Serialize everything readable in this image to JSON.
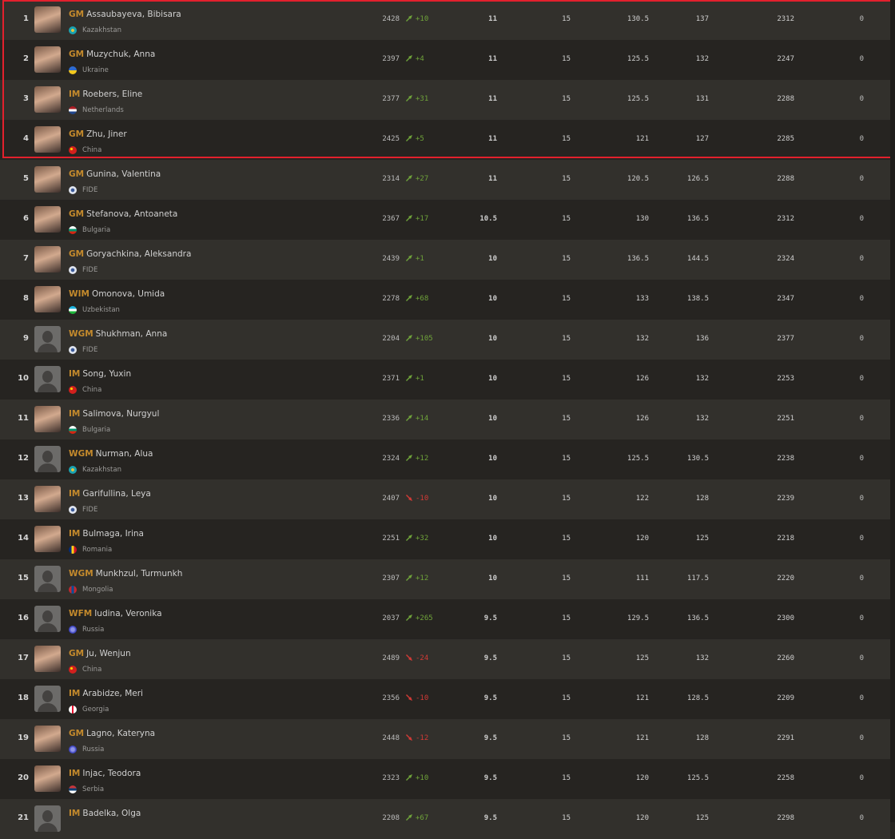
{
  "accent_colors": {
    "title": "#c48a2c",
    "up": "#6fa33a",
    "down": "#d23a36",
    "highlight": "#e3202d"
  },
  "highlight_rows": [
    1,
    2,
    3,
    4
  ],
  "players": [
    {
      "rank": "1",
      "title": "GM",
      "name": "Assaubayeva, Bibisara",
      "country": "Kazakhstan",
      "photo": true,
      "rating": "2428",
      "change": "+10",
      "dir": "up",
      "score": "11",
      "games": "15",
      "c5": "130.5",
      "c6": "137",
      "c7": "2312",
      "c8": "0"
    },
    {
      "rank": "2",
      "title": "GM",
      "name": "Muzychuk, Anna",
      "country": "Ukraine",
      "photo": true,
      "rating": "2397",
      "change": "+4",
      "dir": "up",
      "score": "11",
      "games": "15",
      "c5": "125.5",
      "c6": "132",
      "c7": "2247",
      "c8": "0"
    },
    {
      "rank": "3",
      "title": "IM",
      "name": "Roebers, Eline",
      "country": "Netherlands",
      "photo": true,
      "rating": "2377",
      "change": "+31",
      "dir": "up",
      "score": "11",
      "games": "15",
      "c5": "125.5",
      "c6": "131",
      "c7": "2288",
      "c8": "0"
    },
    {
      "rank": "4",
      "title": "GM",
      "name": "Zhu, Jiner",
      "country": "China",
      "photo": true,
      "rating": "2425",
      "change": "+5",
      "dir": "up",
      "score": "11",
      "games": "15",
      "c5": "121",
      "c6": "127",
      "c7": "2285",
      "c8": "0"
    },
    {
      "rank": "5",
      "title": "GM",
      "name": "Gunina, Valentina",
      "country": "FIDE",
      "photo": true,
      "rating": "2314",
      "change": "+27",
      "dir": "up",
      "score": "11",
      "games": "15",
      "c5": "120.5",
      "c6": "126.5",
      "c7": "2288",
      "c8": "0"
    },
    {
      "rank": "6",
      "title": "GM",
      "name": "Stefanova, Antoaneta",
      "country": "Bulgaria",
      "photo": true,
      "rating": "2367",
      "change": "+17",
      "dir": "up",
      "score": "10.5",
      "games": "15",
      "c5": "130",
      "c6": "136.5",
      "c7": "2312",
      "c8": "0"
    },
    {
      "rank": "7",
      "title": "GM",
      "name": "Goryachkina, Aleksandra",
      "country": "FIDE",
      "photo": true,
      "rating": "2439",
      "change": "+1",
      "dir": "up",
      "score": "10",
      "games": "15",
      "c5": "136.5",
      "c6": "144.5",
      "c7": "2324",
      "c8": "0"
    },
    {
      "rank": "8",
      "title": "WIM",
      "name": "Omonova, Umida",
      "country": "Uzbekistan",
      "photo": true,
      "rating": "2278",
      "change": "+68",
      "dir": "up",
      "score": "10",
      "games": "15",
      "c5": "133",
      "c6": "138.5",
      "c7": "2347",
      "c8": "0"
    },
    {
      "rank": "9",
      "title": "WGM",
      "name": "Shukhman, Anna",
      "country": "FIDE",
      "photo": false,
      "rating": "2204",
      "change": "+105",
      "dir": "up",
      "score": "10",
      "games": "15",
      "c5": "132",
      "c6": "136",
      "c7": "2377",
      "c8": "0"
    },
    {
      "rank": "10",
      "title": "IM",
      "name": "Song, Yuxin",
      "country": "China",
      "photo": false,
      "rating": "2371",
      "change": "+1",
      "dir": "up",
      "score": "10",
      "games": "15",
      "c5": "126",
      "c6": "132",
      "c7": "2253",
      "c8": "0"
    },
    {
      "rank": "11",
      "title": "IM",
      "name": "Salimova, Nurgyul",
      "country": "Bulgaria",
      "photo": true,
      "rating": "2336",
      "change": "+14",
      "dir": "up",
      "score": "10",
      "games": "15",
      "c5": "126",
      "c6": "132",
      "c7": "2251",
      "c8": "0"
    },
    {
      "rank": "12",
      "title": "WGM",
      "name": "Nurman, Alua",
      "country": "Kazakhstan",
      "photo": false,
      "rating": "2324",
      "change": "+12",
      "dir": "up",
      "score": "10",
      "games": "15",
      "c5": "125.5",
      "c6": "130.5",
      "c7": "2238",
      "c8": "0"
    },
    {
      "rank": "13",
      "title": "IM",
      "name": "Garifullina, Leya",
      "country": "FIDE",
      "photo": true,
      "rating": "2407",
      "change": "-10",
      "dir": "down",
      "score": "10",
      "games": "15",
      "c5": "122",
      "c6": "128",
      "c7": "2239",
      "c8": "0"
    },
    {
      "rank": "14",
      "title": "IM",
      "name": "Bulmaga, Irina",
      "country": "Romania",
      "photo": true,
      "rating": "2251",
      "change": "+32",
      "dir": "up",
      "score": "10",
      "games": "15",
      "c5": "120",
      "c6": "125",
      "c7": "2218",
      "c8": "0"
    },
    {
      "rank": "15",
      "title": "WGM",
      "name": "Munkhzul, Turmunkh",
      "country": "Mongolia",
      "photo": false,
      "rating": "2307",
      "change": "+12",
      "dir": "up",
      "score": "10",
      "games": "15",
      "c5": "111",
      "c6": "117.5",
      "c7": "2220",
      "c8": "0"
    },
    {
      "rank": "16",
      "title": "WFM",
      "name": "Iudina, Veronika",
      "country": "Russia",
      "photo": false,
      "rating": "2037",
      "change": "+265",
      "dir": "up",
      "score": "9.5",
      "games": "15",
      "c5": "129.5",
      "c6": "136.5",
      "c7": "2300",
      "c8": "0"
    },
    {
      "rank": "17",
      "title": "GM",
      "name": "Ju, Wenjun",
      "country": "China",
      "photo": true,
      "rating": "2489",
      "change": "-24",
      "dir": "down",
      "score": "9.5",
      "games": "15",
      "c5": "125",
      "c6": "132",
      "c7": "2260",
      "c8": "0"
    },
    {
      "rank": "18",
      "title": "IM",
      "name": "Arabidze, Meri",
      "country": "Georgia",
      "photo": false,
      "rating": "2356",
      "change": "-10",
      "dir": "down",
      "score": "9.5",
      "games": "15",
      "c5": "121",
      "c6": "128.5",
      "c7": "2209",
      "c8": "0"
    },
    {
      "rank": "19",
      "title": "GM",
      "name": "Lagno, Kateryna",
      "country": "Russia",
      "photo": true,
      "rating": "2448",
      "change": "-12",
      "dir": "down",
      "score": "9.5",
      "games": "15",
      "c5": "121",
      "c6": "128",
      "c7": "2291",
      "c8": "0"
    },
    {
      "rank": "20",
      "title": "IM",
      "name": "Injac, Teodora",
      "country": "Serbia",
      "photo": true,
      "rating": "2323",
      "change": "+10",
      "dir": "up",
      "score": "9.5",
      "games": "15",
      "c5": "120",
      "c6": "125.5",
      "c7": "2258",
      "c8": "0"
    },
    {
      "rank": "21",
      "title": "IM",
      "name": "Badelka, Olga",
      "country": "",
      "photo": false,
      "rating": "2208",
      "change": "+67",
      "dir": "up",
      "score": "9.5",
      "games": "15",
      "c5": "120",
      "c6": "125",
      "c7": "2298",
      "c8": "0"
    }
  ]
}
